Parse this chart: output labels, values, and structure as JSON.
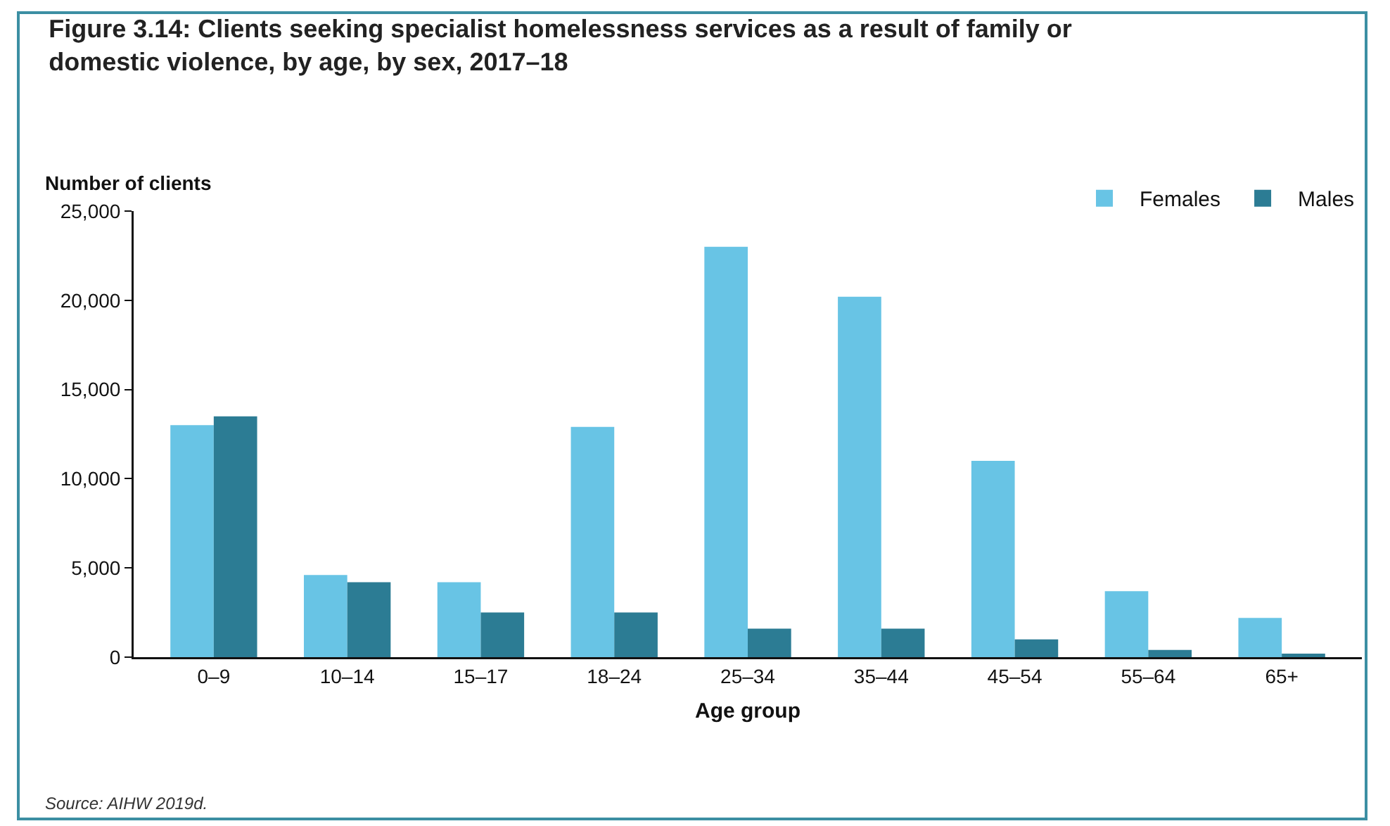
{
  "chart_data": {
    "type": "bar",
    "title": "Figure 3.14: Clients seeking specialist homelessness services as a result of family or domestic violence, by age, by sex, 2017–18",
    "xlabel": "Age group",
    "ylabel": "Number of clients",
    "categories": [
      "0–9",
      "10–14",
      "15–17",
      "18–24",
      "25–34",
      "35–44",
      "45–54",
      "55–64",
      "65+"
    ],
    "series": [
      {
        "name": "Females",
        "color": "#68c4e5",
        "values": [
          13000,
          4600,
          4200,
          12900,
          23000,
          20200,
          11000,
          3700,
          2200
        ]
      },
      {
        "name": "Males",
        "color": "#2c7c94",
        "values": [
          13500,
          4200,
          2500,
          2500,
          1600,
          1600,
          1000,
          400,
          200
        ]
      }
    ],
    "ylim": [
      0,
      25000
    ],
    "yticks": [
      {
        "value": 0,
        "label": "0"
      },
      {
        "value": 5000,
        "label": "5,000"
      },
      {
        "value": 10000,
        "label": "10,000"
      },
      {
        "value": 15000,
        "label": "15,000"
      },
      {
        "value": 20000,
        "label": "20,000"
      },
      {
        "value": 25000,
        "label": "25,000"
      }
    ],
    "grid": false,
    "legend": "top right",
    "annotations": [
      "Source: AIHW 2019d."
    ]
  }
}
